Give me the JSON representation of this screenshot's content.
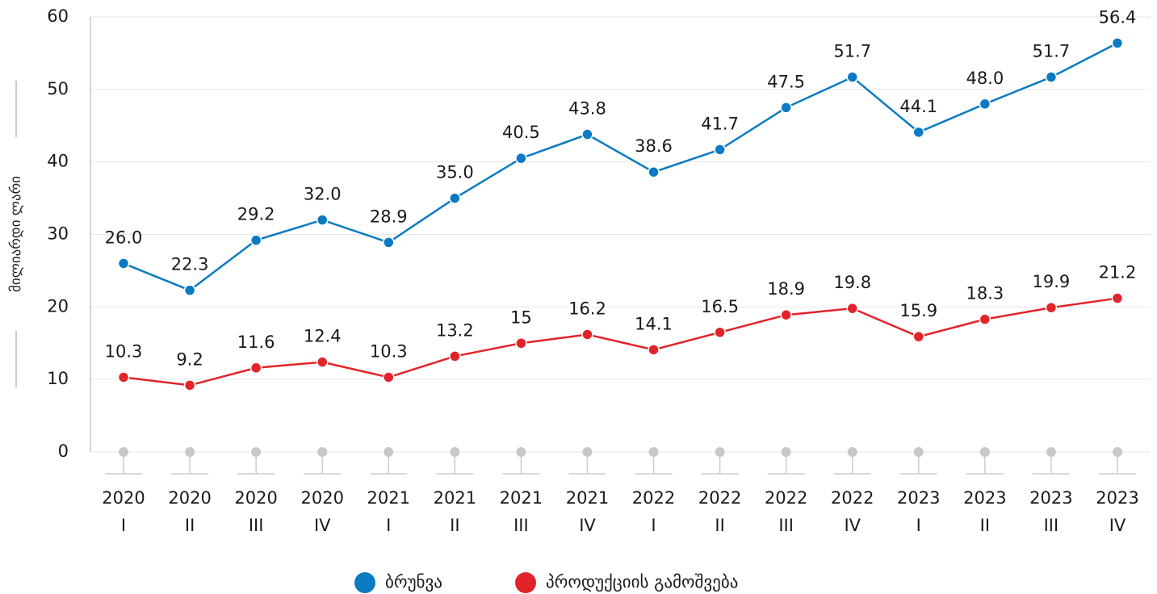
{
  "chart_data": {
    "type": "line",
    "y_label": "მილიარდი ლარი",
    "categories": [
      [
        "2020",
        "I"
      ],
      [
        "2020",
        "II"
      ],
      [
        "2020",
        "III"
      ],
      [
        "2020",
        "IV"
      ],
      [
        "2021",
        "I"
      ],
      [
        "2021",
        "II"
      ],
      [
        "2021",
        "III"
      ],
      [
        "2021",
        "IV"
      ],
      [
        "2022",
        "I"
      ],
      [
        "2022",
        "II"
      ],
      [
        "2022",
        "III"
      ],
      [
        "2022",
        "IV"
      ],
      [
        "2023",
        "I"
      ],
      [
        "2023",
        "II"
      ],
      [
        "2023",
        "III"
      ],
      [
        "2023",
        "IV"
      ]
    ],
    "series": [
      {
        "name": "ბრუნვა",
        "color": "#0a7bc2",
        "values": [
          26.0,
          22.3,
          29.2,
          32.0,
          28.9,
          35.0,
          40.5,
          43.8,
          38.6,
          41.7,
          47.5,
          51.7,
          44.1,
          48.0,
          51.7,
          56.4
        ],
        "value_labels": [
          "26.0",
          "22.3",
          "29.2",
          "32.0",
          "28.9",
          "35.0",
          "40.5",
          "43.8",
          "38.6",
          "41.7",
          "47.5",
          "51.7",
          "44.1",
          "48.0",
          "51.7",
          "56.4"
        ]
      },
      {
        "name": "პროდუქციის გამოშვება",
        "color": "#e3232a",
        "values": [
          10.3,
          9.2,
          11.6,
          12.4,
          10.3,
          13.2,
          15.0,
          16.2,
          14.1,
          16.5,
          18.9,
          19.8,
          15.9,
          18.3,
          19.9,
          21.2
        ]
      }
    ],
    "ylim": [
      0,
      60
    ],
    "yticks": [
      0,
      10,
      20,
      30,
      40,
      50,
      60
    ],
    "grid": true,
    "legend": "bottom"
  }
}
